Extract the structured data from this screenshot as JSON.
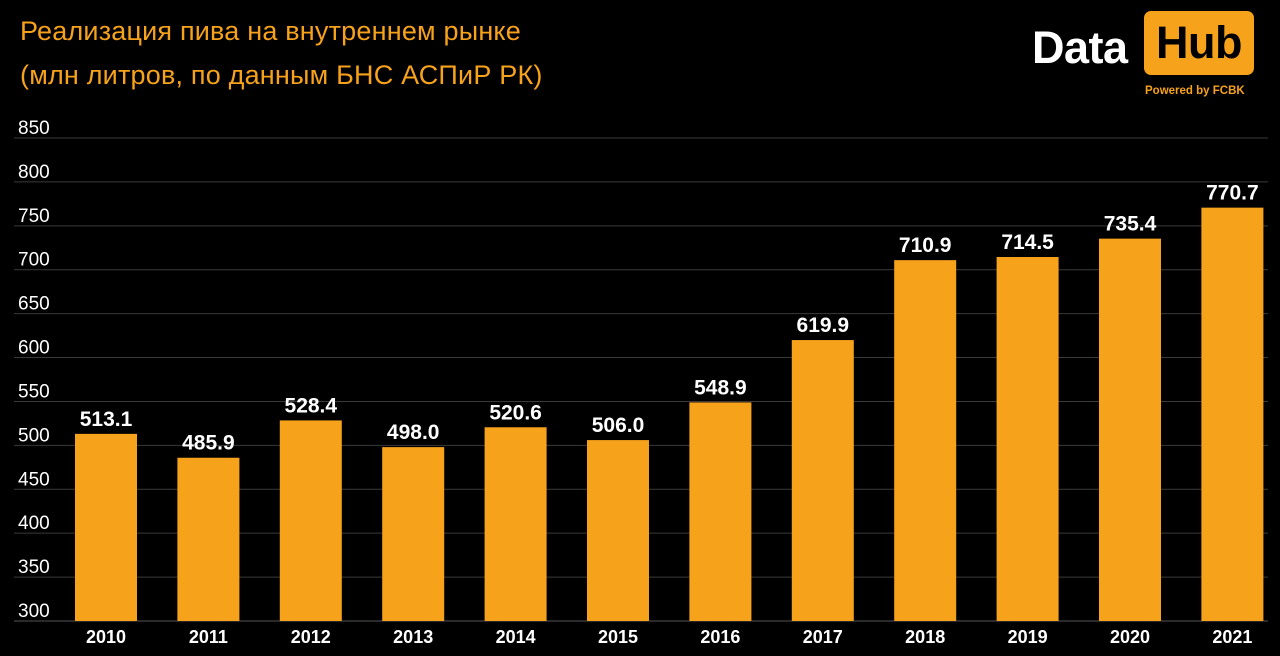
{
  "title": {
    "line1": "Реализация пива на внутреннем рынке",
    "line2": "(млн литров, по данным БНС АСПиР РК)"
  },
  "logo": {
    "data_text": "Data",
    "hub_text": "Hub",
    "powered_text": "Powered by FCBK"
  },
  "colors": {
    "background": "#000000",
    "bar": "#f7a21b",
    "accent": "#f7a21b",
    "text": "#ffffff",
    "grid": "#3a3a3a"
  },
  "chart_data": {
    "type": "bar",
    "title": "Реализация пива на внутреннем рынке",
    "subtitle": "(млн литров, по данным БНС АСПиР РК)",
    "xlabel": "",
    "ylabel": "",
    "categories": [
      "2010",
      "2011",
      "2012",
      "2013",
      "2014",
      "2015",
      "2016",
      "2017",
      "2018",
      "2019",
      "2020",
      "2021"
    ],
    "values": [
      513.1,
      485.9,
      528.4,
      498.0,
      520.6,
      506.0,
      548.9,
      619.9,
      710.9,
      714.5,
      735.4,
      770.7
    ],
    "value_labels": [
      "513.1",
      "485.9",
      "528.4",
      "498.0",
      "520.6",
      "506.0",
      "548.9",
      "619.9",
      "710.9",
      "714.5",
      "735.4",
      "770.7"
    ],
    "ylim": [
      300,
      850
    ],
    "yticks": [
      300,
      350,
      400,
      450,
      500,
      550,
      600,
      650,
      700,
      750,
      800,
      850
    ],
    "grid": true,
    "legend": "none"
  }
}
